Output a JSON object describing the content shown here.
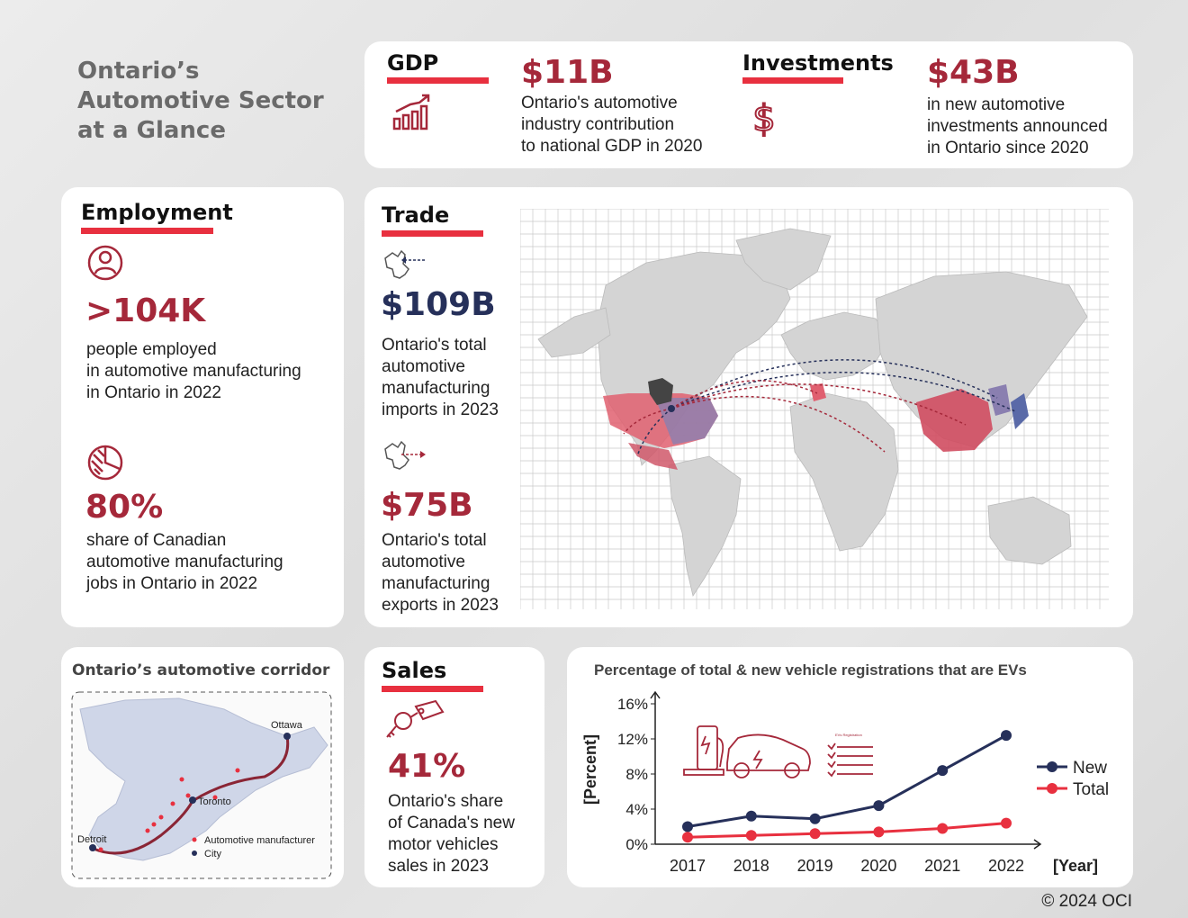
{
  "title": [
    "Ontario’s",
    "Automotive Sector",
    "at a Glance"
  ],
  "gdp": {
    "heading": "GDP",
    "value": "$11B",
    "desc": [
      "Ontario's automotive",
      "industry contribution",
      "to national GDP in 2020"
    ]
  },
  "investments": {
    "heading": "Investments",
    "value": "$43B",
    "desc": [
      "in new automotive",
      "investments announced",
      "in Ontario since 2020"
    ]
  },
  "employment": {
    "heading": "Employment",
    "people_value": ">104K",
    "people_desc": [
      "people employed",
      "in automotive manufacturing",
      "in Ontario in 2022"
    ],
    "share_value": "80%",
    "share_desc": [
      "share of Canadian",
      "automotive manufacturing",
      "jobs in Ontario in 2022"
    ]
  },
  "trade": {
    "heading": "Trade",
    "imports_value": "$109B",
    "imports_desc": [
      "Ontario's total",
      "automotive",
      "manufacturing",
      "imports in 2023"
    ],
    "exports_value": "$75B",
    "exports_desc": [
      "Ontario's total",
      "automotive",
      "manufacturing",
      "exports in 2023"
    ]
  },
  "corridor": {
    "heading": "Ontario’s automotive corridor",
    "cities": [
      "Ottawa",
      "Toronto",
      "Detroit"
    ],
    "legend_manufacturer": "Automotive manufacturer",
    "legend_city": "City"
  },
  "sales": {
    "heading": "Sales",
    "value": "41%",
    "desc": [
      "Ontario's share",
      "of Canada's new",
      "motor vehicles",
      "sales in 2023"
    ]
  },
  "chart_data": {
    "type": "line",
    "title": "Percentage of total & new vehicle registrations that are EVs",
    "xlabel": "[Year]",
    "ylabel": "[Percent]",
    "x": [
      2017,
      2018,
      2019,
      2020,
      2021,
      2022
    ],
    "ylim": [
      0,
      16
    ],
    "yticks": [
      "0%",
      "4%",
      "8%",
      "12%",
      "16%"
    ],
    "legend_position": "right",
    "series": [
      {
        "name": "New",
        "color": "#26305a",
        "values": [
          2.0,
          3.2,
          2.9,
          4.4,
          8.4,
          12.4
        ]
      },
      {
        "name": "Total",
        "color": "#e8303f",
        "values": [
          0.8,
          1.0,
          1.2,
          1.4,
          1.8,
          2.4
        ]
      }
    ],
    "inset_label": "EVs Registration"
  },
  "copyright": "© 2024 OCI",
  "colors": {
    "accent_red": "#e8303f",
    "dark_red": "#a5283a",
    "navy": "#26305a"
  }
}
